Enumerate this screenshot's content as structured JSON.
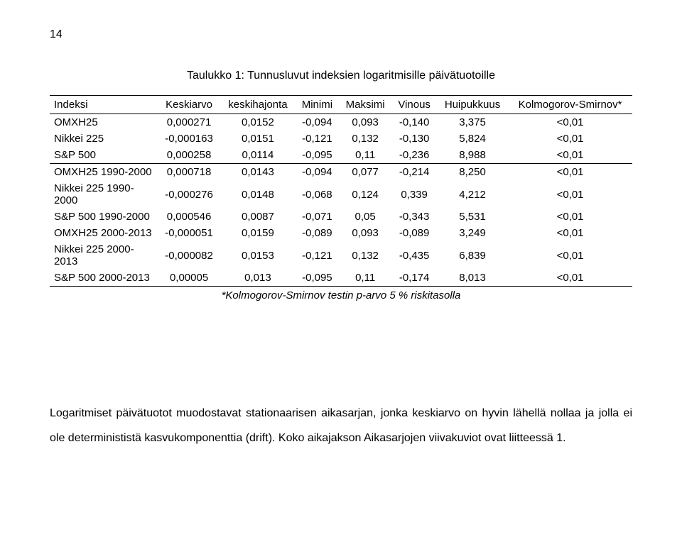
{
  "page_number": "14",
  "table": {
    "title": "Taulukko 1: Tunnusluvut indeksien logaritmisille päivätuotoille",
    "columns": [
      "Indeksi",
      "Keskiarvo",
      "keskihajonta",
      "Minimi",
      "Maksimi",
      "Vinous",
      "Huipukkuus",
      "Kolmogorov-Smirnov*"
    ],
    "rows": [
      {
        "label": "OMXH25",
        "cells": [
          "0,000271",
          "0,0152",
          "-0,094",
          "0,093",
          "-0,140",
          "3,375",
          "<0,01"
        ]
      },
      {
        "label": "Nikkei 225",
        "cells": [
          "-0,000163",
          "0,0151",
          "-0,121",
          "0,132",
          "-0,130",
          "5,824",
          "<0,01"
        ]
      },
      {
        "label": "S&P 500",
        "cells": [
          "0,000258",
          "0,0114",
          "-0,095",
          "0,11",
          "-0,236",
          "8,988",
          "<0,01"
        ],
        "section_end": true
      },
      {
        "label": "OMXH25 1990-2000",
        "cells": [
          "0,000718",
          "0,0143",
          "-0,094",
          "0,077",
          "-0,214",
          "8,250",
          "<0,01"
        ]
      },
      {
        "label": "Nikkei 225 1990-2000",
        "cells": [
          "-0,000276",
          "0,0148",
          "-0,068",
          "0,124",
          "0,339",
          "4,212",
          "<0,01"
        ]
      },
      {
        "label": "S&P 500 1990-2000",
        "cells": [
          "0,000546",
          "0,0087",
          "-0,071",
          "0,05",
          "-0,343",
          "5,531",
          "<0,01"
        ]
      },
      {
        "label": "OMXH25 2000-2013",
        "cells": [
          "-0,000051",
          "0,0159",
          "-0,089",
          "0,093",
          "-0,089",
          "3,249",
          "<0,01"
        ]
      },
      {
        "label": "Nikkei 225 2000-2013",
        "cells": [
          "-0,000082",
          "0,0153",
          "-0,121",
          "0,132",
          "-0,435",
          "6,839",
          "<0,01"
        ]
      },
      {
        "label": "S&P 500 2000-2013",
        "cells": [
          "0,00005",
          "0,013",
          "-0,095",
          "0,11",
          "-0,174",
          "8,013",
          "<0,01"
        ],
        "last": true
      }
    ],
    "footnote": "*Kolmogorov-Smirnov testin p-arvo 5 % riskitasolla"
  },
  "body_text": "Logaritmiset päivätuotot muodostavat stationaarisen aikasarjan, jonka keskiarvo on hyvin lähellä nollaa ja jolla ei ole determinististä kasvukomponenttia (drift). Koko aikajakson Aikasarjojen viivakuviot ovat liitteessä 1.",
  "style": {
    "font_family": "Arial",
    "text_color": "#000000",
    "background_color": "#ffffff",
    "border_color": "#000000",
    "title_fontsize": 16,
    "body_fontsize": 16,
    "table_fontsize": 15,
    "line_height": 2.2
  }
}
